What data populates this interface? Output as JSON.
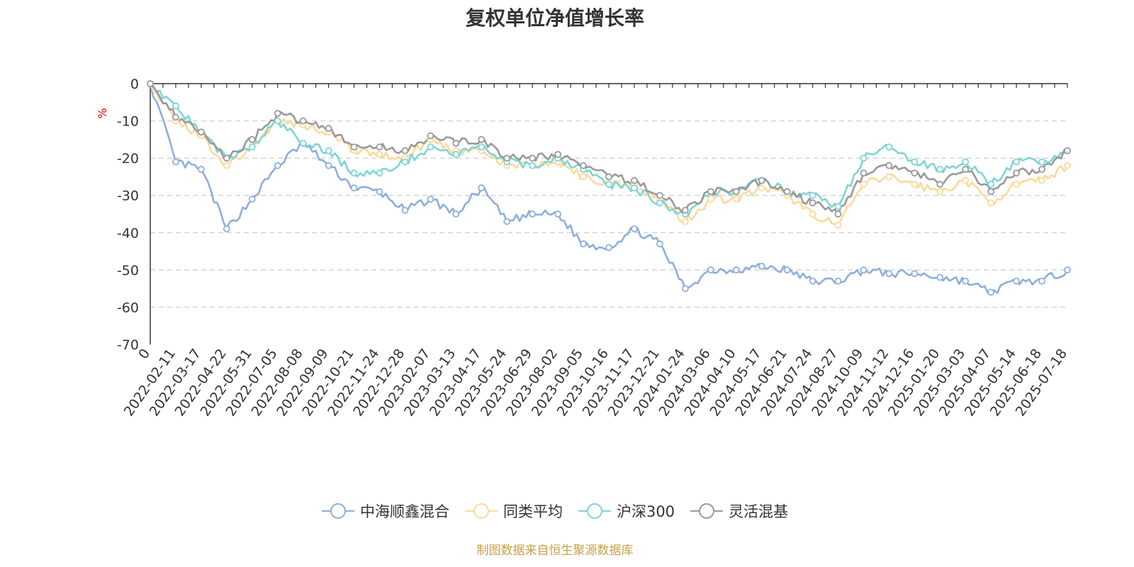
{
  "chart_data": {
    "type": "line",
    "title": "复权单位净值增长率",
    "ylabel": "%",
    "xlabel": "",
    "ylim": [
      -70,
      0
    ],
    "yticks": [
      0,
      -10,
      -20,
      -30,
      -40,
      -50,
      -60,
      -70
    ],
    "grid": true,
    "legend_position": "bottom",
    "x_tick_labels": [
      "0",
      "2022-02-11",
      "2022-03-17",
      "2022-04-22",
      "2022-05-31",
      "2022-07-05",
      "2022-08-08",
      "2022-09-09",
      "2022-10-21",
      "2022-11-24",
      "2022-12-28",
      "2023-02-07",
      "2023-03-13",
      "2023-04-17",
      "2023-05-24",
      "2023-06-29",
      "2023-08-02",
      "2023-09-05",
      "2023-10-16",
      "2023-11-17",
      "2023-12-21",
      "2024-01-24",
      "2024-03-06",
      "2024-04-10",
      "2024-05-17",
      "2024-06-21",
      "2024-07-24",
      "2024-08-27",
      "2024-10-09",
      "2024-11-12",
      "2024-12-16",
      "2025-01-20",
      "2025-03-03",
      "2025-04-07",
      "2025-05-14",
      "2025-06-18",
      "2025-07-18"
    ],
    "x": [
      "0",
      "2022-02-11",
      "2022-03-17",
      "2022-04-22",
      "2022-05-31",
      "2022-07-05",
      "2022-08-08",
      "2022-09-09",
      "2022-10-21",
      "2022-11-24",
      "2022-12-28",
      "2023-02-07",
      "2023-03-13",
      "2023-04-17",
      "2023-05-24",
      "2023-06-29",
      "2023-08-02",
      "2023-09-05",
      "2023-10-16",
      "2023-11-17",
      "2023-12-21",
      "2024-01-24",
      "2024-03-06",
      "2024-04-10",
      "2024-05-17",
      "2024-06-21",
      "2024-07-24",
      "2024-08-27",
      "2024-10-09",
      "2024-11-12",
      "2024-12-16",
      "2025-01-20",
      "2025-03-03",
      "2025-04-07",
      "2025-05-14",
      "2025-06-18",
      "2025-07-18"
    ],
    "series": [
      {
        "name": "中海顺鑫混合",
        "color": "#8eaedc",
        "values": [
          0,
          -21,
          -23,
          -39,
          -31,
          -22,
          -16,
          -22,
          -28,
          -29,
          -34,
          -31,
          -35,
          -28,
          -37,
          -35,
          -35,
          -43,
          -44,
          -39,
          -43,
          -55,
          -50,
          -50,
          -49,
          -50,
          -53,
          -53,
          -50,
          -51,
          -51,
          -52,
          -53,
          -56,
          -53,
          -53,
          -50
        ]
      },
      {
        "name": "同类平均",
        "color": "#fdd99b",
        "values": [
          0,
          -10,
          -14,
          -22,
          -17,
          -10,
          -11,
          -13,
          -18,
          -19,
          -20,
          -15,
          -18,
          -18,
          -22,
          -22,
          -21,
          -25,
          -27,
          -27,
          -31,
          -37,
          -31,
          -31,
          -28,
          -30,
          -35,
          -38,
          -27,
          -25,
          -27,
          -29,
          -26,
          -32,
          -27,
          -26,
          -22
        ]
      },
      {
        "name": "沪深300",
        "color": "#7fd4d6",
        "values": [
          0,
          -6,
          -13,
          -20,
          -17,
          -10,
          -16,
          -18,
          -24,
          -24,
          -21,
          -17,
          -19,
          -17,
          -21,
          -22,
          -20,
          -23,
          -27,
          -28,
          -32,
          -35,
          -29,
          -29,
          -26,
          -29,
          -30,
          -33,
          -20,
          -17,
          -21,
          -23,
          -21,
          -27,
          -21,
          -21,
          -18
        ]
      },
      {
        "name": "灵活混基",
        "color": "#999999",
        "values": [
          0,
          -9,
          -13,
          -20,
          -15,
          -8,
          -10,
          -12,
          -17,
          -17,
          -18,
          -14,
          -16,
          -15,
          -20,
          -20,
          -19,
          -22,
          -25,
          -26,
          -30,
          -34,
          -29,
          -29,
          -26,
          -29,
          -32,
          -35,
          -24,
          -22,
          -24,
          -27,
          -23,
          -29,
          -24,
          -23,
          -18
        ]
      }
    ]
  },
  "source_note": "制图数据来自恒生聚源数据库"
}
